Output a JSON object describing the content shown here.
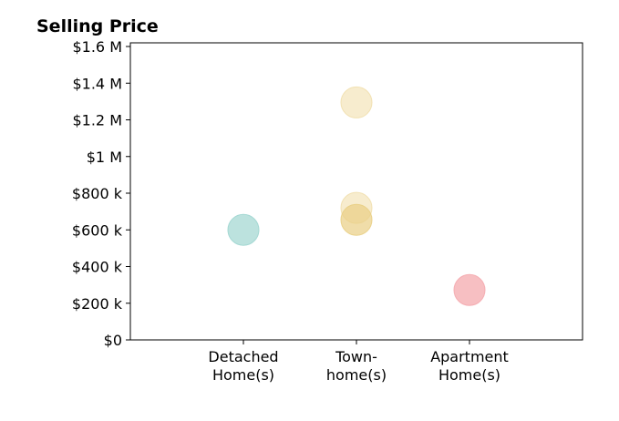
{
  "chart_data": {
    "type": "scatter",
    "title": "Selling Price",
    "xlabel": "",
    "ylabel": "",
    "categories": [
      [
        "Detached",
        "Home(s)"
      ],
      [
        "Town-",
        "home(s)"
      ],
      [
        "Apartment",
        "Home(s)"
      ]
    ],
    "y_ticks": [
      {
        "value": 0,
        "label": "$0"
      },
      {
        "value": 200000,
        "label": "$200 k"
      },
      {
        "value": 400000,
        "label": "$400 k"
      },
      {
        "value": 600000,
        "label": "$600 k"
      },
      {
        "value": 800000,
        "label": "$800 k"
      },
      {
        "value": 1000000,
        "label": "$1 M"
      },
      {
        "value": 1200000,
        "label": "$1.2 M"
      },
      {
        "value": 1400000,
        "label": "$1.4 M"
      },
      {
        "value": 1600000,
        "label": "$1.6 M"
      }
    ],
    "ylim": [
      0,
      1620000
    ],
    "xlim": [
      -1,
      3
    ],
    "grid": false,
    "points": [
      {
        "category": 0,
        "y": 600000,
        "color": "#9fd6d0",
        "opacity": 0.7
      },
      {
        "category": 1,
        "y": 1295000,
        "color": "#f1dfad",
        "opacity": 0.6
      },
      {
        "category": 1,
        "y": 720000,
        "color": "#f1dfad",
        "opacity": 0.6
      },
      {
        "category": 1,
        "y": 655000,
        "color": "#e9cf84",
        "opacity": 0.7
      },
      {
        "category": 2,
        "y": 272000,
        "color": "#f4a9ae",
        "opacity": 0.75
      }
    ]
  }
}
